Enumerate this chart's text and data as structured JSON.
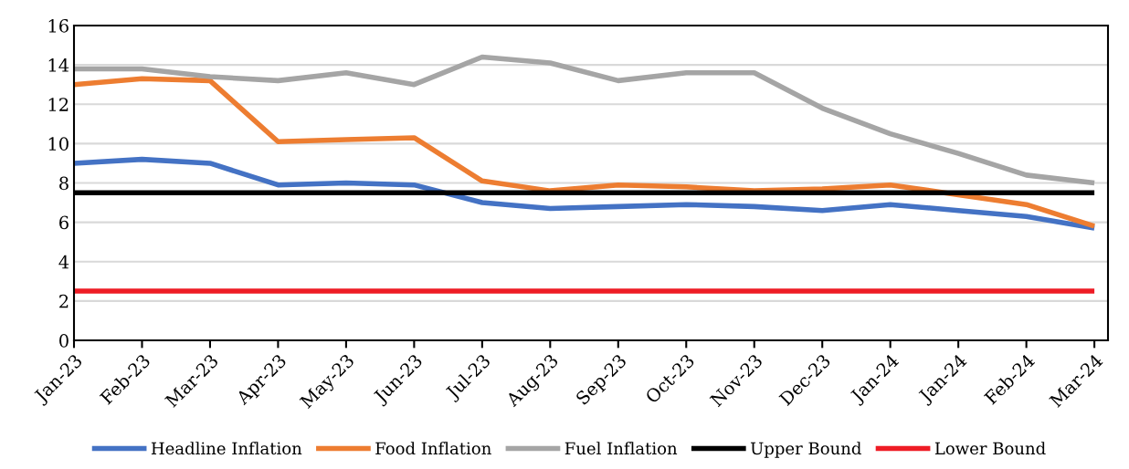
{
  "chart_data": {
    "type": "line",
    "ylim": [
      0,
      16
    ],
    "yticks": [
      0,
      2,
      4,
      6,
      8,
      10,
      12,
      14,
      16
    ],
    "categories": [
      "Jan-23",
      "Feb-23",
      "Mar-23",
      "Apr-23",
      "May-23",
      "Jun-23",
      "Jul-23",
      "Aug-23",
      "Sep-23",
      "Oct-23",
      "Nov-23",
      "Dec-23",
      "Jan-24",
      "Jan-24",
      "Feb-24",
      "Mar-24"
    ],
    "grid": "y",
    "legend": "bottom",
    "marker": "none",
    "line_style": "solid",
    "series": [
      {
        "name": "Headline Inflation",
        "color": "#4472c4",
        "values": [
          9.0,
          9.2,
          9.0,
          7.9,
          8.0,
          7.9,
          7.0,
          6.7,
          6.8,
          6.9,
          6.8,
          6.6,
          6.9,
          6.6,
          6.3,
          5.7
        ]
      },
      {
        "name": "Food Inflation",
        "color": "#ed7d31",
        "values": [
          13.0,
          13.3,
          13.2,
          10.1,
          10.2,
          10.3,
          8.1,
          7.6,
          7.9,
          7.8,
          7.6,
          7.7,
          7.9,
          7.4,
          6.9,
          5.8
        ]
      },
      {
        "name": "Fuel Inflation",
        "color": "#a5a5a5",
        "values": [
          13.8,
          13.8,
          13.4,
          13.2,
          13.6,
          13.0,
          14.4,
          14.1,
          13.2,
          13.6,
          13.6,
          11.8,
          10.5,
          9.5,
          8.4,
          8.0
        ]
      },
      {
        "name": "Upper Bound",
        "color": "#000000",
        "values": [
          7.5,
          7.5,
          7.5,
          7.5,
          7.5,
          7.5,
          7.5,
          7.5,
          7.5,
          7.5,
          7.5,
          7.5,
          7.5,
          7.5,
          7.5,
          7.5
        ]
      },
      {
        "name": "Lower Bound",
        "color": "#ee1c25",
        "values": [
          2.5,
          2.5,
          2.5,
          2.5,
          2.5,
          2.5,
          2.5,
          2.5,
          2.5,
          2.5,
          2.5,
          2.5,
          2.5,
          2.5,
          2.5,
          2.5
        ]
      }
    ]
  }
}
